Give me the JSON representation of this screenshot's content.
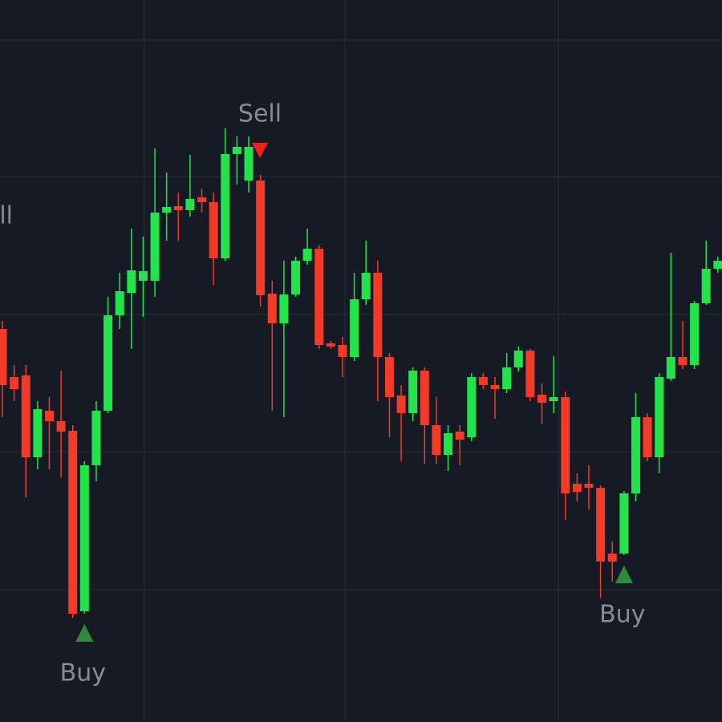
{
  "chart_data": {
    "type": "candlestick",
    "categories": [
      null,
      null,
      null,
      null,
      null,
      null,
      null,
      null,
      null,
      null,
      null,
      null,
      null,
      null,
      null,
      null,
      null,
      null,
      null,
      null,
      null,
      null,
      null,
      null,
      null,
      null,
      null,
      null,
      null,
      null,
      null,
      null,
      null,
      null,
      null,
      null,
      null,
      null,
      null,
      null,
      null,
      null,
      null,
      null,
      null,
      null,
      null,
      null,
      null,
      null,
      null,
      null,
      null,
      null,
      null,
      null,
      null,
      null,
      null,
      null,
      null,
      null
    ],
    "values": [
      [
        490,
        500,
        380,
        420
      ],
      [
        430,
        445,
        400,
        415
      ],
      [
        432,
        445,
        280,
        330
      ],
      [
        330,
        400,
        315,
        390
      ],
      [
        388,
        405,
        315,
        375
      ],
      [
        375,
        438,
        305,
        362
      ],
      [
        363,
        370,
        130,
        135
      ],
      [
        138,
        325,
        135,
        320
      ],
      [
        320,
        400,
        300,
        388
      ],
      [
        388,
        530,
        385,
        507
      ],
      [
        507,
        560,
        490,
        537
      ],
      [
        535,
        615,
        465,
        563
      ],
      [
        550,
        605,
        505,
        562
      ],
      [
        550,
        715,
        530,
        635
      ],
      [
        635,
        685,
        600,
        642
      ],
      [
        643,
        660,
        600,
        638
      ],
      [
        638,
        707,
        630,
        652
      ],
      [
        654,
        665,
        635,
        648
      ],
      [
        648,
        660,
        545,
        578
      ],
      [
        578,
        740,
        575,
        708
      ],
      [
        708,
        730,
        670,
        717
      ],
      [
        675,
        730,
        660,
        717
      ],
      [
        675,
        682,
        518,
        532
      ],
      [
        534,
        550,
        388,
        497
      ],
      [
        497,
        575,
        380,
        533
      ],
      [
        533,
        580,
        530,
        575
      ],
      [
        575,
        615,
        570,
        590
      ],
      [
        590,
        595,
        465,
        470
      ],
      [
        472,
        475,
        465,
        468
      ],
      [
        470,
        480,
        430,
        455
      ],
      [
        455,
        560,
        450,
        527
      ],
      [
        527,
        600,
        520,
        560
      ],
      [
        560,
        575,
        400,
        455
      ],
      [
        455,
        460,
        355,
        405
      ],
      [
        407,
        420,
        325,
        385
      ],
      [
        385,
        442,
        375,
        438
      ],
      [
        438,
        442,
        322,
        370
      ],
      [
        370,
        405,
        322,
        333
      ],
      [
        333,
        370,
        313,
        360
      ],
      [
        362,
        370,
        320,
        352
      ],
      [
        355,
        435,
        350,
        430
      ],
      [
        430,
        435,
        415,
        420
      ],
      [
        420,
        430,
        378,
        415
      ],
      [
        415,
        460,
        410,
        442
      ],
      [
        442,
        468,
        437,
        463
      ],
      [
        463,
        465,
        400,
        405
      ],
      [
        408,
        422,
        372,
        398
      ],
      [
        400,
        456,
        385,
        405
      ],
      [
        405,
        412,
        252,
        285
      ],
      [
        297,
        310,
        275,
        287
      ],
      [
        297,
        320,
        265,
        292
      ],
      [
        292,
        295,
        155,
        200
      ],
      [
        210,
        225,
        175,
        200
      ],
      [
        210,
        288,
        208,
        285
      ],
      [
        285,
        410,
        275,
        380
      ],
      [
        380,
        385,
        325,
        330
      ],
      [
        330,
        435,
        310,
        430
      ],
      [
        428,
        585,
        425,
        455
      ],
      [
        455,
        500,
        440,
        445
      ],
      [
        445,
        525,
        440,
        522
      ],
      [
        522,
        600,
        520,
        565
      ],
      [
        565,
        580,
        560,
        575
      ]
    ],
    "colors": {
      "up": "#22e34b",
      "down": "#f23a28",
      "buy": "#2e8b3a",
      "sell": "#f2201e"
    },
    "ylim": [
      0,
      900
    ],
    "grid": true,
    "grid_y": [
      850,
      680,
      508,
      337,
      165
    ],
    "grid_x": [
      12.1,
      29.2,
      47.4
    ],
    "signals": [
      {
        "text": "Sell",
        "kind": "sell"
      },
      {
        "text": "Buy",
        "kind": "buy",
        "candle": 7
      },
      {
        "text": "Sell",
        "kind": "sell",
        "candle": 21
      },
      {
        "text": "Buy",
        "kind": "buy",
        "candle": 53
      }
    ]
  }
}
